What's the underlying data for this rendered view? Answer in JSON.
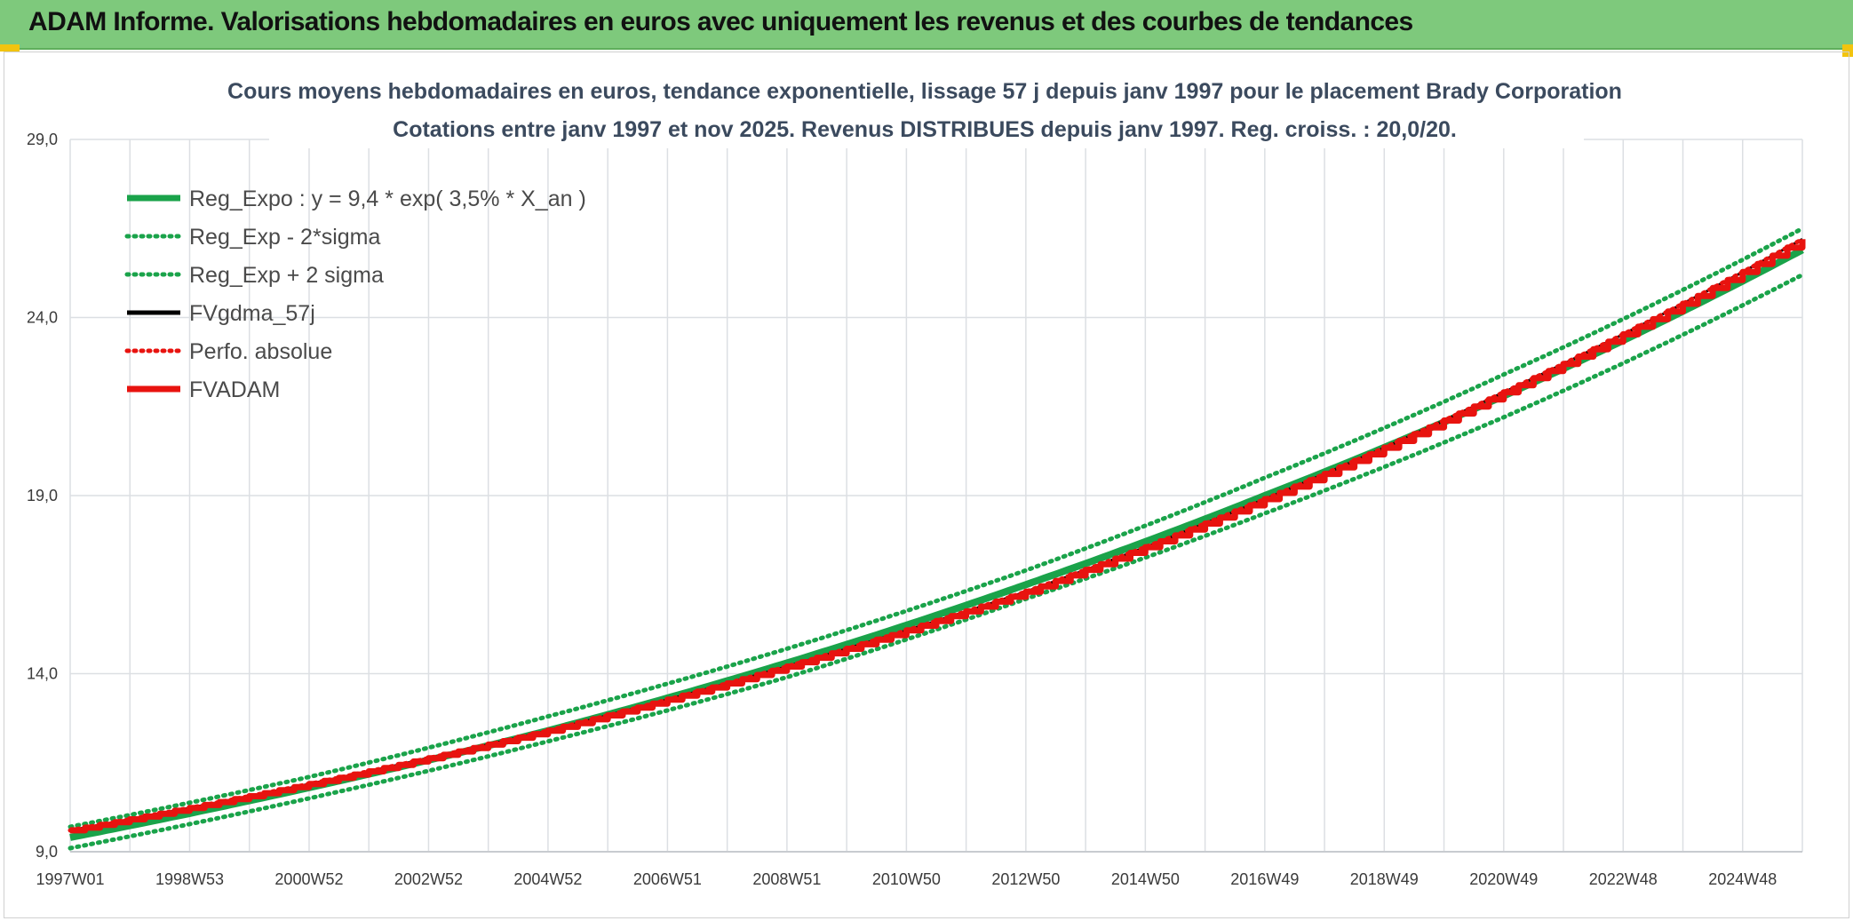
{
  "header": {
    "title": "ADAM Informe. Valorisations hebdomadaires en euros avec uniquement les revenus et des courbes de tendances"
  },
  "colors": {
    "header_bg": "#7ec97c",
    "green": "#1aa34a",
    "red": "#e8130f",
    "black": "#000000",
    "grid": "#dcdfe3"
  },
  "chart_data": {
    "type": "line",
    "title_line1": "Cours moyens hebdomadaires en euros, tendance exponentielle, lissage 57 j depuis janv 1997 pour le placement Brady Corporation",
    "title_line2": "Cotations entre janv 1997 et nov 2025. Revenus DISTRIBUES depuis janv 1997. Reg. croiss. : 20,0/20.",
    "xlabel": "",
    "ylabel": "",
    "x_tick_labels": [
      "1997W01",
      "1998W53",
      "2000W52",
      "2002W52",
      "2004W52",
      "2006W51",
      "2008W51",
      "2010W50",
      "2012W50",
      "2014W50",
      "2016W49",
      "2018W49",
      "2020W49",
      "2022W48",
      "2024W48"
    ],
    "y_tick_labels": [
      "9,0",
      "14,0",
      "19,0",
      "24,0",
      "29,0"
    ],
    "y_ticks": [
      9,
      14,
      19,
      24,
      29
    ],
    "ylim": [
      9,
      29
    ],
    "x_range_years": [
      0,
      29
    ],
    "grid": true,
    "legend_position": "top-left",
    "series": [
      {
        "name": "Reg_Expo : y = 9,4 * exp( 3,5% *  X_an )",
        "style": "solid-thick",
        "color": "#1aa34a",
        "x_years": [
          0,
          4,
          8,
          12,
          16,
          20,
          24,
          29
        ],
        "values": [
          9.4,
          10.8,
          12.4,
          14.3,
          16.5,
          19.0,
          21.8,
          25.9
        ]
      },
      {
        "name": "Reg_Exp - 2*sigma",
        "style": "dotted",
        "color": "#1aa34a",
        "x_years": [
          0,
          4,
          8,
          12,
          16,
          20,
          24,
          29
        ],
        "values": [
          9.1,
          10.5,
          12.1,
          13.9,
          16.1,
          18.5,
          21.2,
          25.2
        ]
      },
      {
        "name": "Reg_Exp + 2 sigma",
        "style": "dotted",
        "color": "#1aa34a",
        "x_years": [
          0,
          4,
          8,
          12,
          16,
          20,
          24,
          29
        ],
        "values": [
          9.7,
          11.1,
          12.8,
          14.7,
          16.9,
          19.5,
          22.4,
          26.5
        ]
      },
      {
        "name": "FVgdma_57j",
        "style": "solid",
        "color": "#000000",
        "x_years": [
          0,
          4,
          8,
          12,
          16,
          20,
          24,
          29
        ],
        "values": [
          9.6,
          10.9,
          12.4,
          14.2,
          16.3,
          18.9,
          21.9,
          26.2
        ]
      },
      {
        "name": "Perfo. absolue",
        "style": "dotted",
        "color": "#e8130f",
        "x_years": [
          0,
          4,
          8,
          12,
          16,
          20,
          24,
          29
        ],
        "values": [
          9.6,
          10.9,
          12.4,
          14.2,
          16.3,
          18.9,
          21.9,
          26.2
        ]
      },
      {
        "name": "FVADAM",
        "style": "step-thick",
        "color": "#e8130f",
        "x_years": [
          0,
          4,
          8,
          12,
          16,
          20,
          24,
          29
        ],
        "values": [
          9.6,
          10.9,
          12.4,
          14.2,
          16.3,
          18.9,
          21.9,
          26.2
        ]
      }
    ]
  }
}
